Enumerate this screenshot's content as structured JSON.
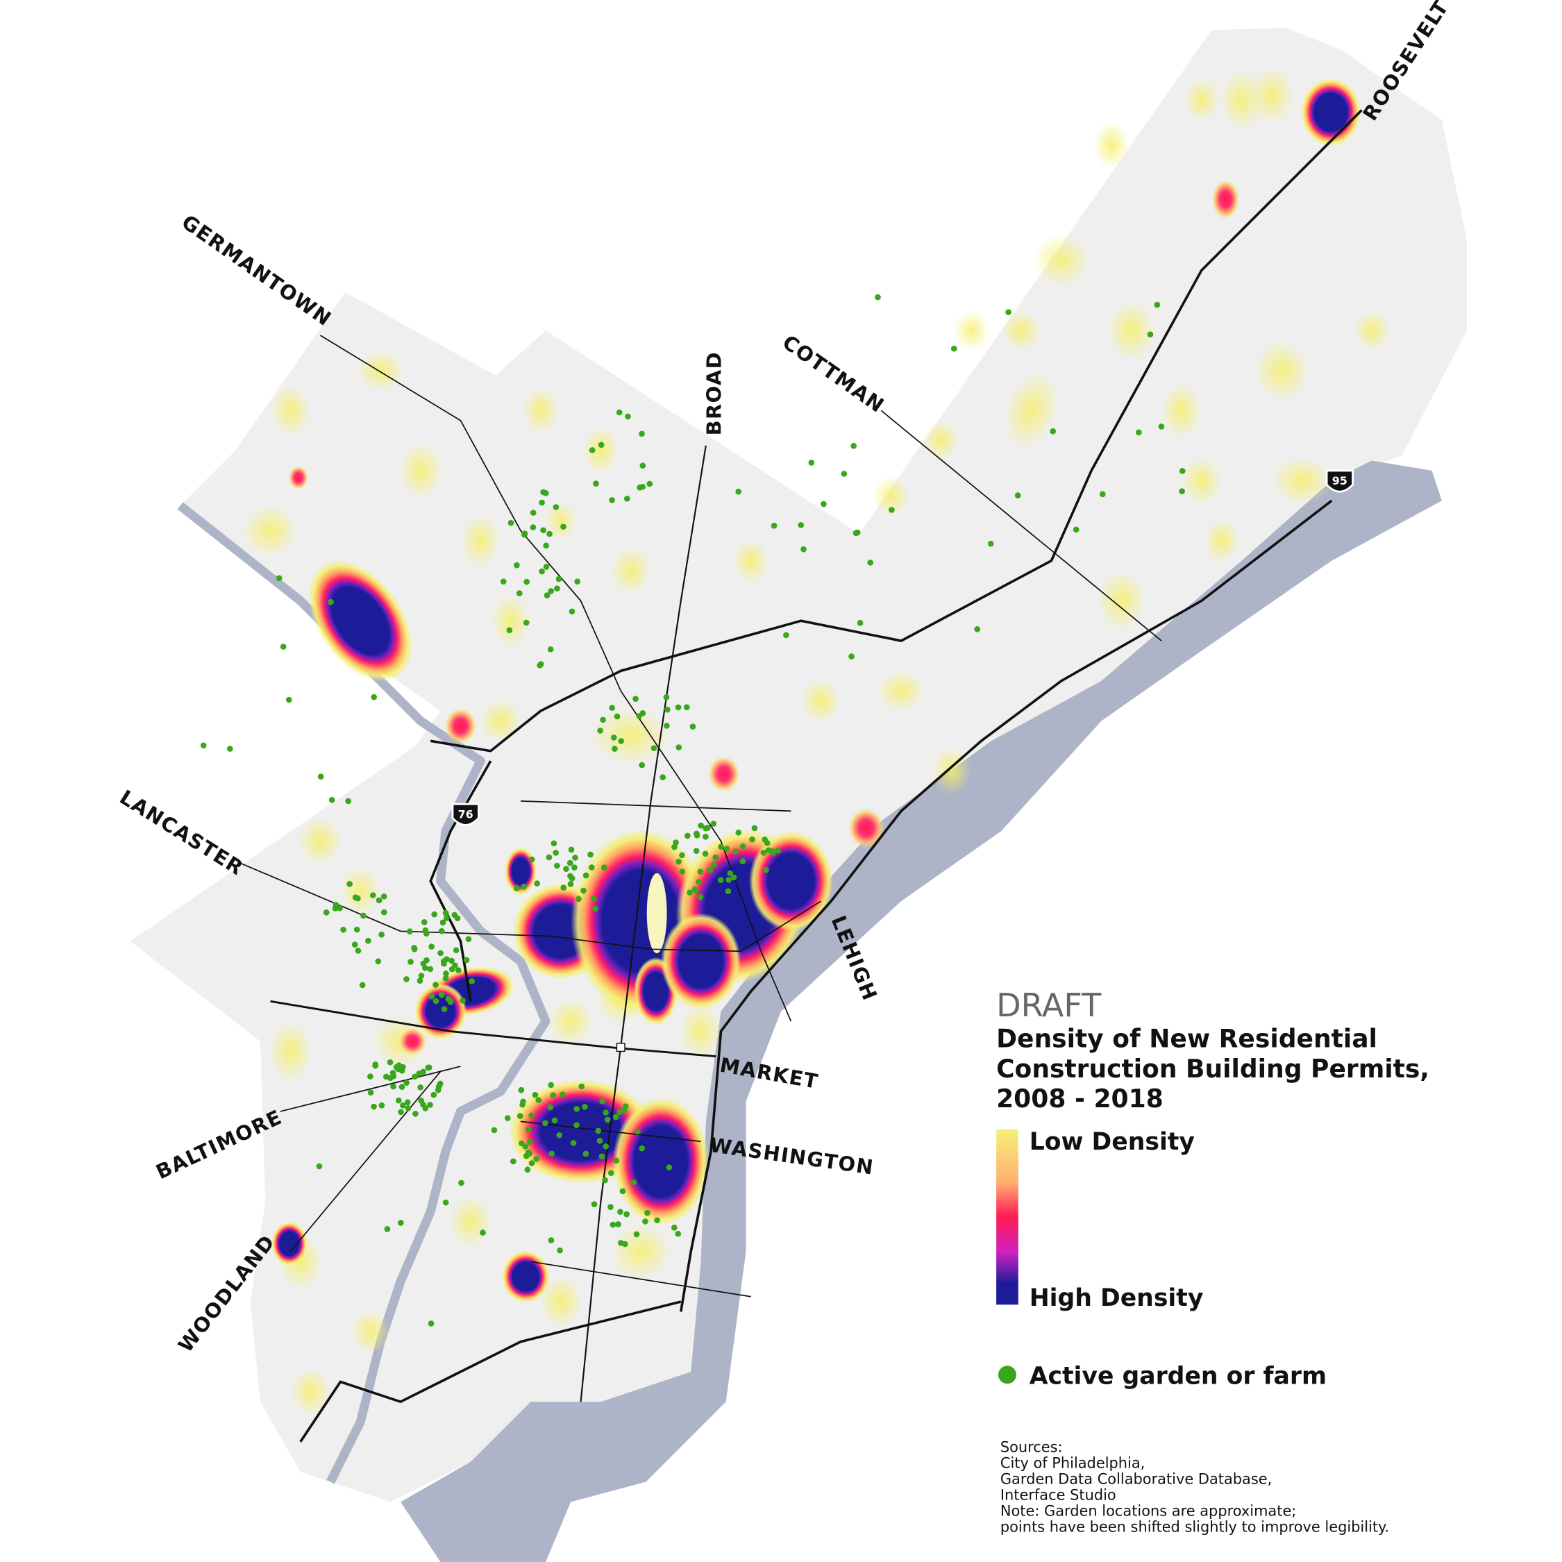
{
  "map": {
    "draft": "DRAFT",
    "title": [
      "Density of New Residential",
      "Construction Building Permits,",
      "2008 - 2018"
    ],
    "legend": {
      "low": "Low Density",
      "high": "High Density",
      "garden": "Active garden or farm"
    },
    "roads": {
      "germantown": "GERMANTOWN",
      "broad": "BROAD",
      "cottman": "COTTMAN",
      "roosevelt": "ROOSEVELT",
      "lancaster": "LANCASTER",
      "lehigh": "LEHIGH",
      "market": "MARKET",
      "washington": "WASHINGTON",
      "baltimore": "BALTIMORE",
      "woodland": "WOODLAND"
    },
    "highways": {
      "i76": "76",
      "i95": "95"
    },
    "sources": [
      "Sources:",
      "City of Philadelphia,",
      "Garden Data Collaborative Database,",
      "Interface Studio",
      "Note: Garden locations are approximate;",
      "points have been shifted slightly to improve legibility."
    ]
  }
}
